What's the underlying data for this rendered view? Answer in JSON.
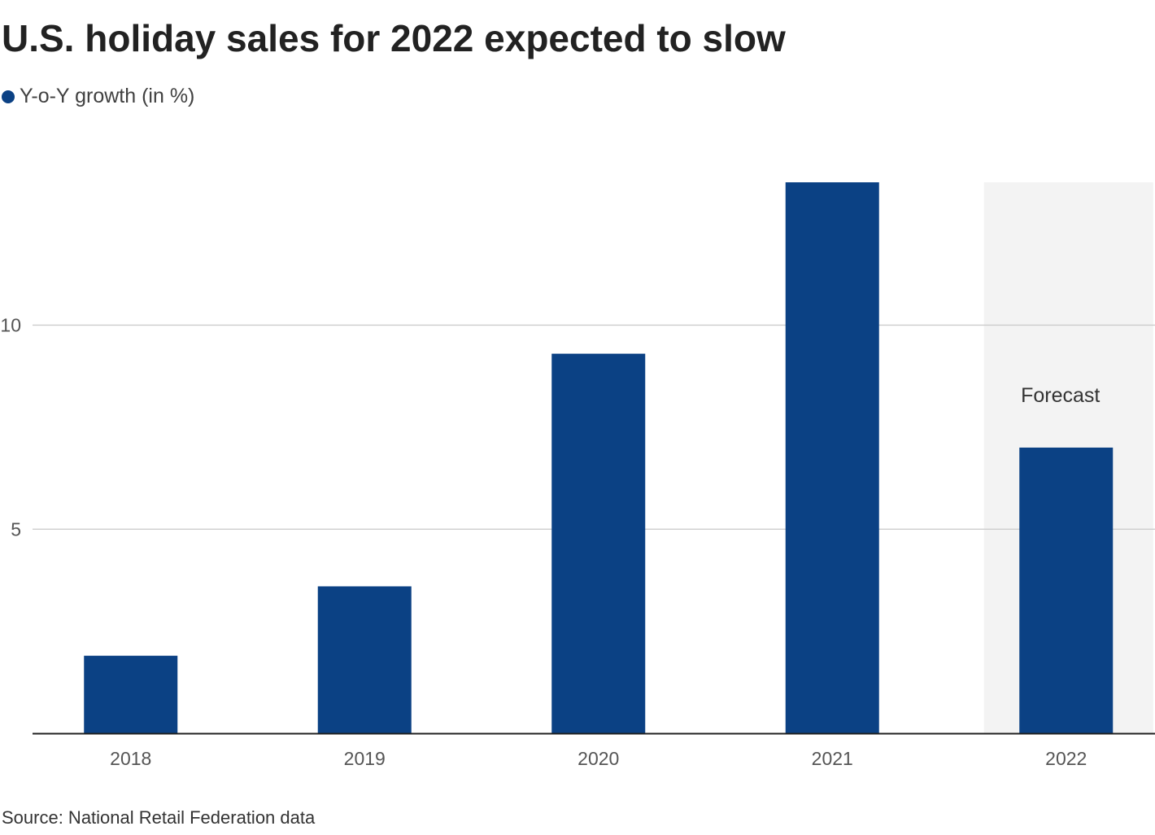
{
  "chart_data": {
    "type": "bar",
    "title": "U.S. holiday sales for 2022 expected to slow",
    "categories": [
      "2018",
      "2019",
      "2020",
      "2021",
      "2022"
    ],
    "series": [
      {
        "name": "Y-o-Y growth (in %)",
        "color": "#0b4184",
        "values": [
          1.9,
          3.6,
          9.3,
          13.5,
          7.0
        ]
      }
    ],
    "xlabel": "",
    "ylabel": "",
    "ylim": [
      0,
      13.5
    ],
    "yticks": [
      5,
      10
    ],
    "ytick_labels": [
      "5",
      "10"
    ],
    "grid": true,
    "legend_position": "top-left",
    "annotations": [
      {
        "category": "2022",
        "text": "Forecast",
        "highlight_color": "#f3f3f3"
      }
    ],
    "source": "Source: National Retail Federation data"
  }
}
